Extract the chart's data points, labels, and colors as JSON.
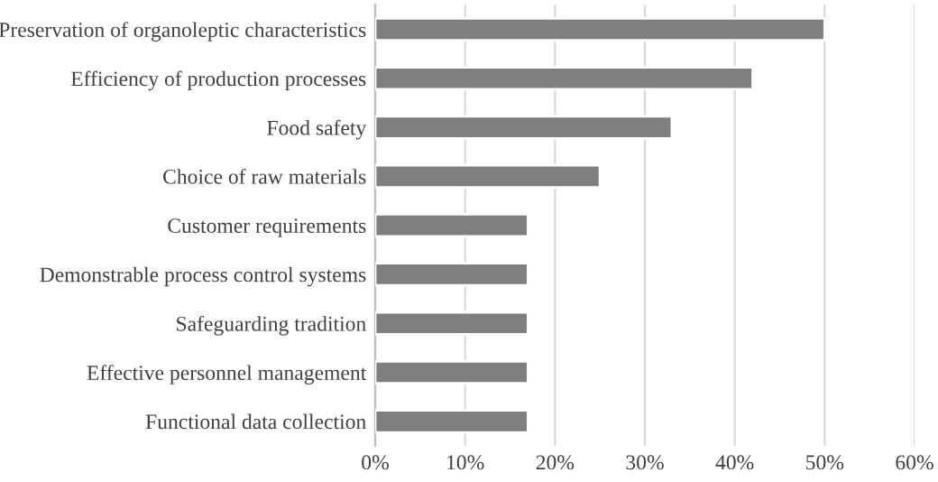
{
  "chart_data": {
    "type": "bar",
    "orientation": "horizontal",
    "categories": [
      "Preservation of organoleptic characteristics",
      "Efficiency of production processes",
      "Food safety",
      "Choice of raw materials",
      "Customer requirements",
      "Demonstrable process control systems",
      "Safeguarding tradition",
      "Effective personnel management",
      "Functional data collection"
    ],
    "values": [
      50,
      42,
      33,
      25,
      17,
      17,
      17,
      17,
      17
    ],
    "color": "#7f7f7f",
    "xlim": [
      0,
      60
    ],
    "xticks": [
      {
        "value": 0,
        "label": "0%"
      },
      {
        "value": 10,
        "label": "10%"
      },
      {
        "value": 20,
        "label": "20%"
      },
      {
        "value": 30,
        "label": "30%"
      },
      {
        "value": 40,
        "label": "40%"
      },
      {
        "value": 50,
        "label": "50%"
      },
      {
        "value": 60,
        "label": "60%"
      }
    ],
    "grid": "x",
    "legend": false
  }
}
